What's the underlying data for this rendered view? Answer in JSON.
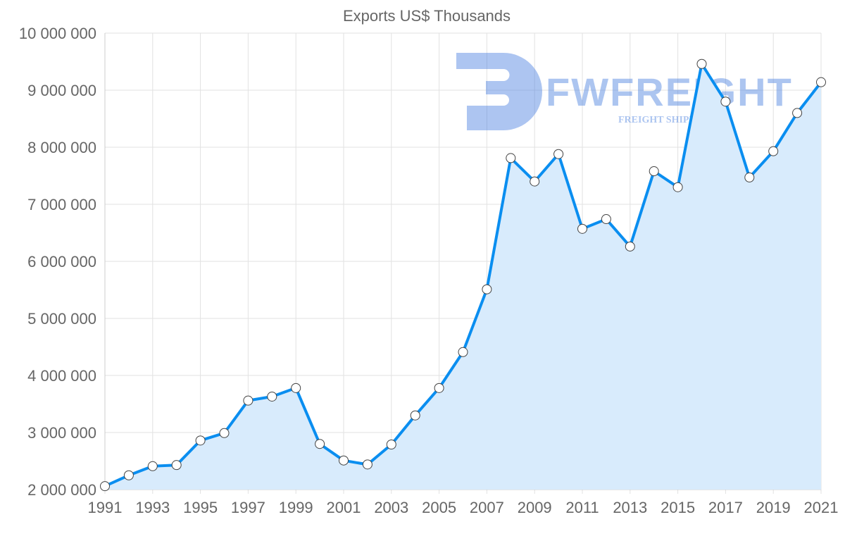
{
  "chart_data": {
    "type": "area",
    "title": "Exports US$ Thousands",
    "xlabel": "",
    "ylabel": "",
    "x": [
      1991,
      1992,
      1993,
      1994,
      1995,
      1996,
      1997,
      1998,
      1999,
      2000,
      2001,
      2002,
      2003,
      2004,
      2005,
      2006,
      2007,
      2008,
      2009,
      2010,
      2011,
      2012,
      2013,
      2014,
      2015,
      2016,
      2017,
      2018,
      2019,
      2020,
      2021
    ],
    "series": [
      {
        "name": "Exports US$ Thousands",
        "values": [
          2060000,
          2250000,
          2410000,
          2430000,
          2860000,
          2990000,
          3560000,
          3630000,
          3780000,
          2800000,
          2510000,
          2440000,
          2790000,
          3300000,
          3780000,
          4410000,
          5510000,
          7810000,
          7400000,
          7880000,
          6570000,
          6740000,
          6260000,
          7580000,
          7300000,
          9460000,
          8800000,
          7470000,
          7930000,
          8600000,
          9140000
        ]
      }
    ],
    "xlim": [
      1991,
      2021
    ],
    "ylim": [
      2000000,
      10000000
    ],
    "yticks": [
      "2 000 000",
      "3 000 000",
      "4 000 000",
      "5 000 000",
      "6 000 000",
      "7 000 000",
      "8 000 000",
      "9 000 000",
      "10 000 000"
    ],
    "xticks": [
      "1991",
      "1993",
      "1995",
      "1997",
      "1999",
      "2001",
      "2003",
      "2005",
      "2007",
      "2009",
      "2011",
      "2013",
      "2015",
      "2017",
      "2019",
      "2021"
    ],
    "grid": true,
    "legend": "none",
    "colors": {
      "line": "#0a8ef0",
      "fill": "#d8ebfc",
      "grid": "#e2e2e2"
    }
  },
  "watermark": {
    "brand": "FWFREIGHT",
    "tagline": "FREIGHT SHIPPING"
  }
}
